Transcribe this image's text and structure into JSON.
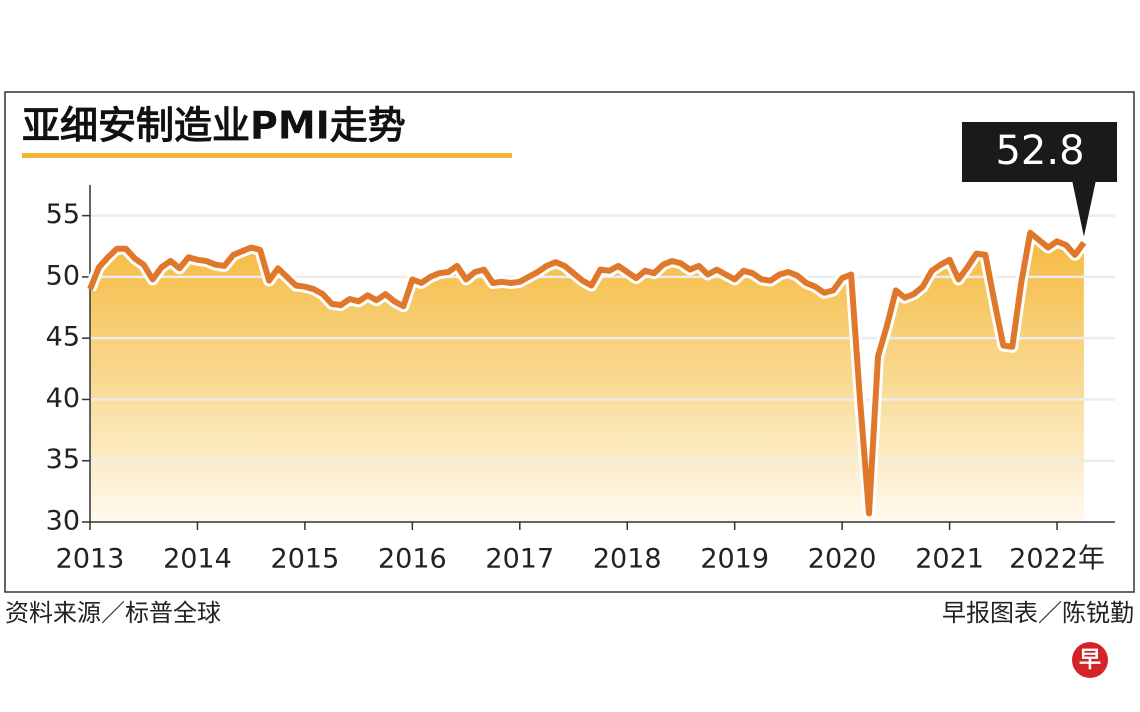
{
  "chart_data": {
    "type": "line",
    "title": "亚细安制造业PMI走势",
    "source": "资料来源／标普全球",
    "credit": "早报图表／陈锐勤",
    "logo": "早",
    "categories": [
      "2013",
      null,
      null,
      null,
      null,
      null,
      null,
      null,
      null,
      null,
      null,
      null,
      "2014",
      null,
      null,
      null,
      null,
      null,
      null,
      null,
      null,
      null,
      null,
      null,
      "2015",
      null,
      null,
      null,
      null,
      null,
      null,
      null,
      null,
      null,
      null,
      null,
      "2016",
      null,
      null,
      null,
      null,
      null,
      null,
      null,
      null,
      null,
      null,
      null,
      "2017",
      null,
      null,
      null,
      null,
      null,
      null,
      null,
      null,
      null,
      null,
      null,
      "2018",
      null,
      null,
      null,
      null,
      null,
      null,
      null,
      null,
      null,
      null,
      null,
      "2019",
      null,
      null,
      null,
      null,
      null,
      null,
      null,
      null,
      null,
      null,
      null,
      "2020",
      null,
      null,
      null,
      null,
      null,
      null,
      null,
      null,
      null,
      null,
      null,
      "2021",
      null,
      null,
      null,
      null,
      null,
      null,
      null,
      null,
      null,
      null,
      null,
      "2022年",
      null,
      null,
      null
    ],
    "values": [
      49.0,
      50.8,
      51.6,
      52.3,
      52.3,
      51.5,
      51.0,
      49.8,
      50.8,
      51.3,
      50.7,
      51.6,
      51.4,
      51.3,
      51.0,
      50.9,
      51.8,
      52.1,
      52.4,
      52.2,
      49.7,
      50.7,
      50.0,
      49.3,
      49.2,
      49.0,
      48.6,
      47.8,
      47.7,
      48.2,
      48.0,
      48.5,
      48.1,
      48.6,
      48.0,
      47.6,
      49.8,
      49.5,
      50.0,
      50.3,
      50.4,
      50.9,
      49.8,
      50.4,
      50.6,
      49.5,
      49.6,
      49.5,
      49.6,
      50.0,
      50.4,
      50.9,
      51.2,
      50.9,
      50.3,
      49.7,
      49.3,
      50.6,
      50.5,
      50.9,
      50.4,
      49.9,
      50.5,
      50.3,
      51.0,
      51.3,
      51.1,
      50.6,
      50.9,
      50.2,
      50.6,
      50.2,
      49.8,
      50.5,
      50.3,
      49.8,
      49.7,
      50.2,
      50.4,
      50.1,
      49.5,
      49.2,
      48.7,
      48.9,
      49.9,
      50.2,
      40.0,
      30.7,
      43.5,
      46.0,
      48.9,
      48.3,
      48.6,
      49.2,
      50.5,
      51.0,
      51.4,
      49.8,
      50.8,
      51.9,
      51.8,
      48.0,
      44.4,
      44.3,
      49.5,
      53.6,
      53.0,
      52.4,
      52.9,
      52.6,
      51.8,
      52.8
    ],
    "color": "#e0782c",
    "ylim": [
      30,
      57.5
    ],
    "yticks": [
      30,
      35,
      40,
      45,
      50,
      55
    ],
    "grid": true
  }
}
